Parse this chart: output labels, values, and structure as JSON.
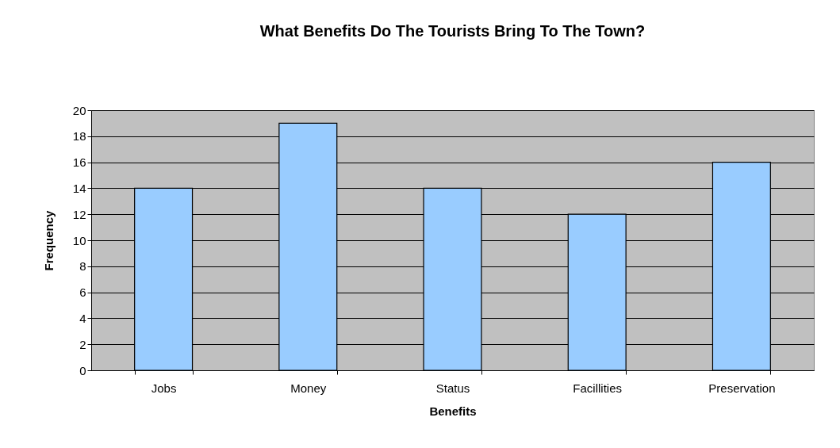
{
  "chart_data": {
    "type": "bar",
    "title": "What Benefits Do The Tourists Bring To The Town?",
    "xlabel": "Benefits",
    "ylabel": "Frequency",
    "categories": [
      "Jobs",
      "Money",
      "Status",
      "Facillities",
      "Preservation"
    ],
    "values": [
      14,
      19,
      14,
      12,
      16
    ],
    "color": "#99ccff",
    "ylim": [
      0,
      20
    ],
    "yticks": [
      0,
      2,
      4,
      6,
      8,
      10,
      12,
      14,
      16,
      18,
      20
    ],
    "grid": "y"
  }
}
